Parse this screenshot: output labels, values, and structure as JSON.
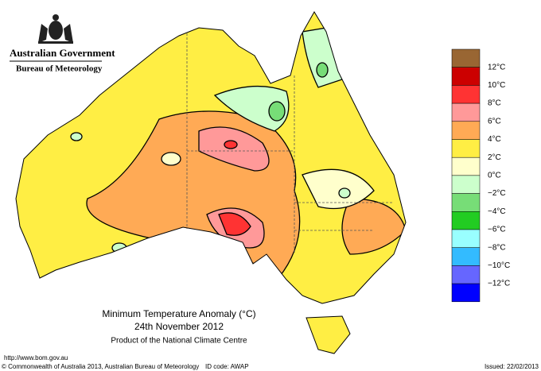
{
  "header": {
    "government": "Australian Government",
    "agency": "Bureau of Meteorology"
  },
  "map": {
    "title": "Minimum Temperature Anomaly (°C)",
    "date": "24th November 2012",
    "product": "Product of the National Climate Centre"
  },
  "legend": {
    "colors": [
      "#996633",
      "#cc0000",
      "#ff3333",
      "#ff9999",
      "#ffaa55",
      "#ffee44",
      "#ffffcc",
      "#ccffcc",
      "#77dd77",
      "#22cc22",
      "#99ffff",
      "#33bbff",
      "#6666ff",
      "#0000ff"
    ],
    "labels": [
      "12°C",
      "10°C",
      "8°C",
      "6°C",
      "4°C",
      "2°C",
      "0°C",
      "−2°C",
      "−4°C",
      "−6°C",
      "−8°C",
      "−10°C",
      "−12°C"
    ]
  },
  "footer": {
    "url": "http://www.bom.gov.au",
    "copyright": "© Commonwealth of Australia 2013, Australian Bureau of Meteorology",
    "id_code": "ID code: AWAP",
    "issued": "Issued: 22/02/2013"
  }
}
